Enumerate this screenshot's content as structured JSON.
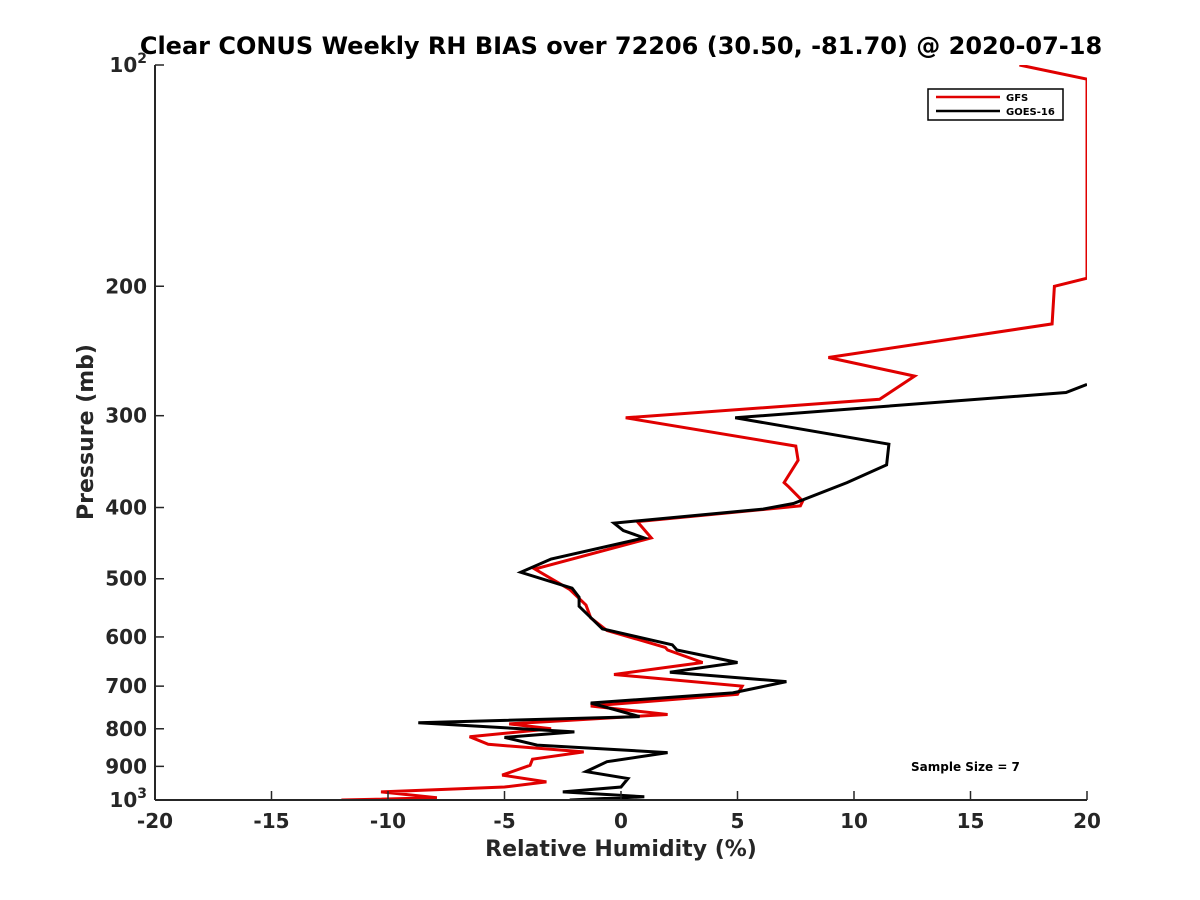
{
  "chart_data": {
    "type": "line",
    "title": "Clear CONUS Weekly RH BIAS over 72206 (30.50, -81.70) @ 2020-07-18",
    "xlabel": "Relative Humidity (%)",
    "ylabel": "Pressure (mb)",
    "xlim": [
      -20,
      20
    ],
    "ylim": [
      100,
      1000
    ],
    "yscale": "log",
    "y_reversed": true,
    "grid": false,
    "legend_position": "top-right",
    "x_ticks": [
      "-20",
      "-15",
      "-10",
      "-5",
      "0",
      "5",
      "10",
      "15",
      "20"
    ],
    "y_ticks": [
      {
        "value": 100,
        "base": "10",
        "exp": "2"
      },
      {
        "value": 200,
        "label": "200"
      },
      {
        "value": 300,
        "label": "300"
      },
      {
        "value": 400,
        "label": "400"
      },
      {
        "value": 500,
        "label": "500"
      },
      {
        "value": 600,
        "label": "600"
      },
      {
        "value": 700,
        "label": "700"
      },
      {
        "value": 800,
        "label": "800"
      },
      {
        "value": 900,
        "label": "900"
      },
      {
        "value": 1000,
        "base": "10",
        "exp": "3"
      }
    ],
    "annotation": "Sample Size = 7",
    "series": [
      {
        "name": "GFS",
        "color": "#e00000",
        "points": [
          [
            17.1,
            100
          ],
          [
            20.0,
            104.5
          ],
          [
            20.0,
            195
          ],
          [
            18.6,
            200
          ],
          [
            18.5,
            225
          ],
          [
            8.9,
            250
          ],
          [
            12.6,
            265
          ],
          [
            11.1,
            285
          ],
          [
            0.2,
            302
          ],
          [
            7.5,
            330
          ],
          [
            7.6,
            345
          ],
          [
            7.0,
            370
          ],
          [
            7.2,
            375
          ],
          [
            7.8,
            392
          ],
          [
            7.7,
            398
          ],
          [
            0.7,
            418
          ],
          [
            1.3,
            440
          ],
          [
            -3.7,
            485
          ],
          [
            -2.2,
            517
          ],
          [
            -1.5,
            543
          ],
          [
            -1.3,
            565
          ],
          [
            -0.6,
            588
          ],
          [
            1.9,
            620
          ],
          [
            2.0,
            625
          ],
          [
            3.5,
            650
          ],
          [
            -0.3,
            675
          ],
          [
            5.2,
            700
          ],
          [
            5.0,
            718
          ],
          [
            -1.3,
            745
          ],
          [
            2.0,
            765
          ],
          [
            -4.8,
            788
          ],
          [
            -3.0,
            800
          ],
          [
            -6.5,
            820
          ],
          [
            -5.7,
            840
          ],
          [
            -1.6,
            860
          ],
          [
            -3.8,
            880
          ],
          [
            -3.9,
            897
          ],
          [
            -5.1,
            925
          ],
          [
            -3.2,
            945
          ],
          [
            -5.0,
            960
          ],
          [
            -10.3,
            975
          ],
          [
            -7.9,
            993
          ],
          [
            -12.0,
            1000
          ]
        ]
      },
      {
        "name": "GOES-16",
        "color": "#000000",
        "points": [
          [
            20.0,
            272
          ],
          [
            19.1,
            279
          ],
          [
            4.9,
            302
          ],
          [
            11.5,
            328
          ],
          [
            11.4,
            350
          ],
          [
            9.7,
            370
          ],
          [
            7.4,
            395
          ],
          [
            6.1,
            402
          ],
          [
            -0.3,
            420
          ],
          [
            0.1,
            430
          ],
          [
            1.0,
            440
          ],
          [
            -3.0,
            470
          ],
          [
            -4.3,
            490
          ],
          [
            -2.1,
            515
          ],
          [
            -1.8,
            530
          ],
          [
            -1.8,
            545
          ],
          [
            -0.8,
            585
          ],
          [
            2.2,
            615
          ],
          [
            2.4,
            625
          ],
          [
            5.0,
            650
          ],
          [
            2.1,
            670
          ],
          [
            7.1,
            690
          ],
          [
            4.8,
            715
          ],
          [
            -1.3,
            738
          ],
          [
            0.8,
            770
          ],
          [
            -8.7,
            785
          ],
          [
            -2.0,
            808
          ],
          [
            -5.0,
            822
          ],
          [
            -3.6,
            842
          ],
          [
            2.0,
            862
          ],
          [
            -0.6,
            887
          ],
          [
            -1.5,
            915
          ],
          [
            0.3,
            935
          ],
          [
            0.0,
            960
          ],
          [
            -2.5,
            975
          ],
          [
            1.0,
            990
          ],
          [
            -2.2,
            1000
          ]
        ]
      }
    ]
  }
}
